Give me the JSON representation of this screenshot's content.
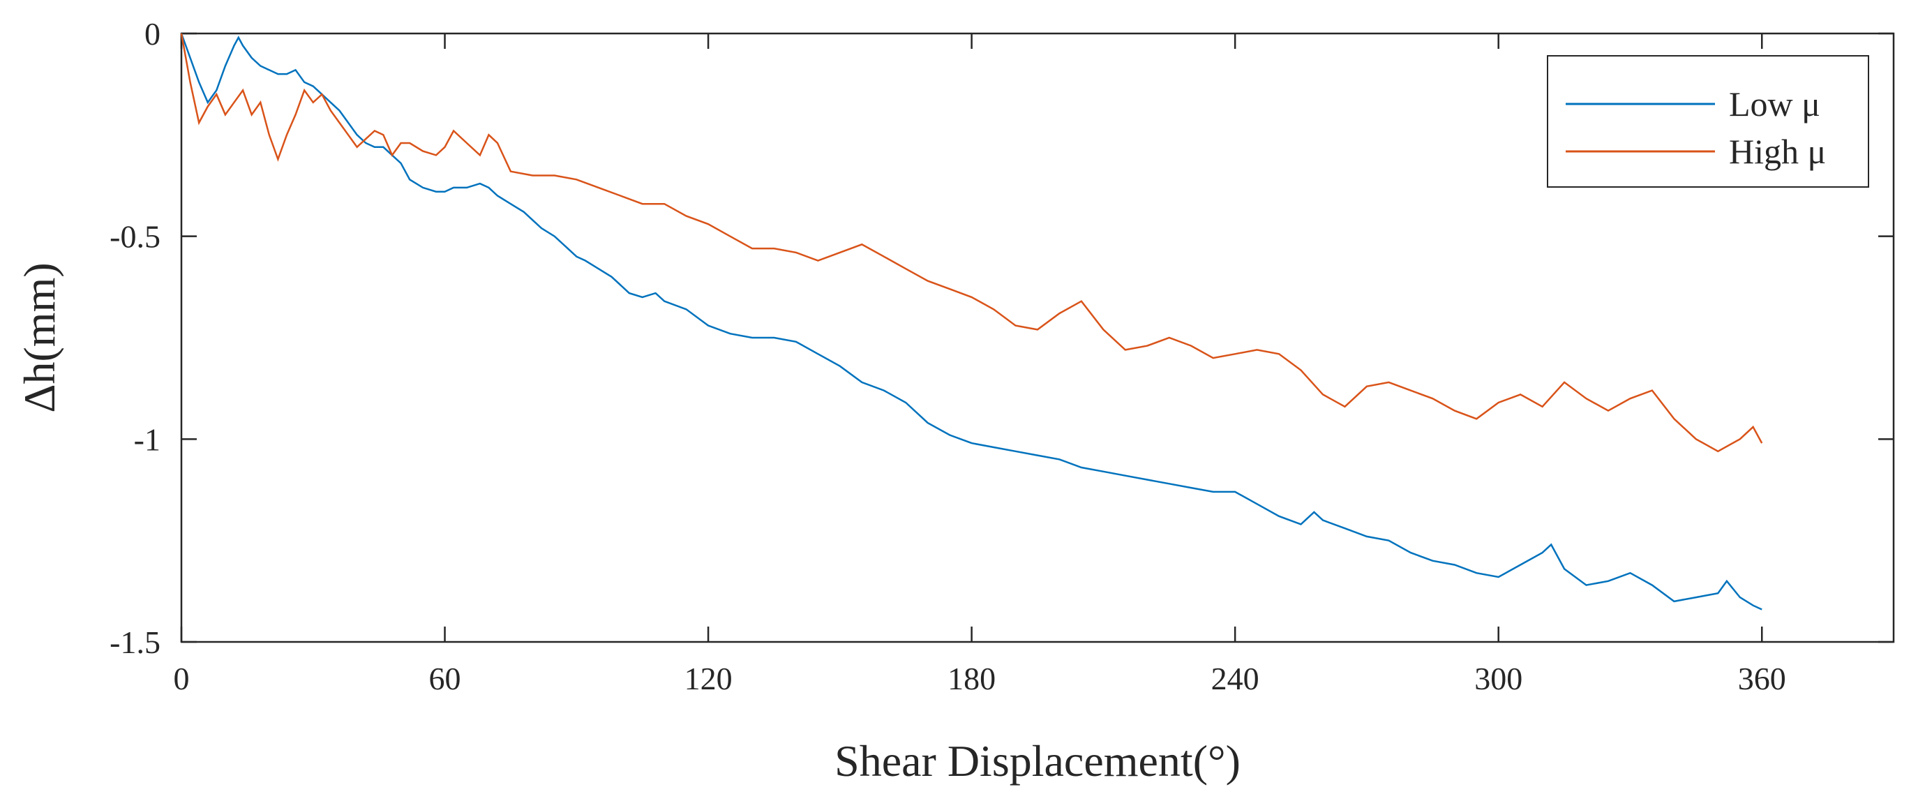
{
  "chart_data": {
    "type": "line",
    "title": "",
    "xlabel": "Shear Displacement(°)",
    "ylabel": "Δh(mm)",
    "xlim": [
      0,
      390
    ],
    "ylim": [
      -1.5,
      0
    ],
    "xticks": [
      0,
      60,
      120,
      180,
      240,
      300,
      360
    ],
    "xtick_labels": [
      "0",
      "60",
      "120",
      "180",
      "240",
      "300",
      "360"
    ],
    "yticks": [
      0,
      -0.5,
      -1,
      -1.5
    ],
    "ytick_labels": [
      "0",
      "-0.5",
      "-1",
      "-1.5"
    ],
    "grid": false,
    "legend_position": "top-right",
    "series": [
      {
        "name": "Low μ",
        "color": "#0072BD",
        "x": [
          0,
          2,
          4,
          6,
          8,
          10,
          12,
          13,
          14,
          16,
          18,
          20,
          22,
          24,
          26,
          28,
          30,
          32,
          34,
          36,
          38,
          40,
          42,
          44,
          46,
          48,
          50,
          52,
          55,
          58,
          60,
          62,
          65,
          68,
          70,
          72,
          75,
          78,
          80,
          82,
          85,
          88,
          90,
          92,
          95,
          98,
          100,
          102,
          105,
          108,
          110,
          115,
          120,
          125,
          130,
          135,
          140,
          145,
          150,
          155,
          160,
          165,
          170,
          175,
          180,
          185,
          190,
          195,
          200,
          205,
          210,
          215,
          220,
          225,
          230,
          235,
          240,
          245,
          250,
          255,
          258,
          260,
          265,
          270,
          275,
          280,
          285,
          290,
          295,
          300,
          305,
          310,
          312,
          315,
          320,
          325,
          330,
          335,
          340,
          345,
          350,
          352,
          355,
          358,
          360
        ],
        "y": [
          0,
          -0.06,
          -0.12,
          -0.17,
          -0.14,
          -0.08,
          -0.03,
          -0.01,
          -0.03,
          -0.06,
          -0.08,
          -0.09,
          -0.1,
          -0.1,
          -0.09,
          -0.12,
          -0.13,
          -0.15,
          -0.17,
          -0.19,
          -0.22,
          -0.25,
          -0.27,
          -0.28,
          -0.28,
          -0.3,
          -0.32,
          -0.36,
          -0.38,
          -0.39,
          -0.39,
          -0.38,
          -0.38,
          -0.37,
          -0.38,
          -0.4,
          -0.42,
          -0.44,
          -0.46,
          -0.48,
          -0.5,
          -0.53,
          -0.55,
          -0.56,
          -0.58,
          -0.6,
          -0.62,
          -0.64,
          -0.65,
          -0.64,
          -0.66,
          -0.68,
          -0.72,
          -0.74,
          -0.75,
          -0.75,
          -0.76,
          -0.79,
          -0.82,
          -0.86,
          -0.88,
          -0.91,
          -0.96,
          -0.99,
          -1.01,
          -1.02,
          -1.03,
          -1.04,
          -1.05,
          -1.07,
          -1.08,
          -1.09,
          -1.1,
          -1.11,
          -1.12,
          -1.13,
          -1.13,
          -1.16,
          -1.19,
          -1.21,
          -1.18,
          -1.2,
          -1.22,
          -1.24,
          -1.25,
          -1.28,
          -1.3,
          -1.31,
          -1.33,
          -1.34,
          -1.31,
          -1.28,
          -1.26,
          -1.32,
          -1.36,
          -1.35,
          -1.33,
          -1.36,
          -1.4,
          -1.39,
          -1.38,
          -1.35,
          -1.39,
          -1.41,
          -1.42
        ]
      },
      {
        "name": "High μ",
        "color": "#D95319",
        "x": [
          0,
          2,
          4,
          6,
          8,
          10,
          12,
          14,
          16,
          18,
          20,
          22,
          24,
          26,
          28,
          30,
          32,
          34,
          36,
          38,
          40,
          42,
          44,
          46,
          48,
          50,
          52,
          55,
          58,
          60,
          62,
          65,
          68,
          70,
          72,
          75,
          80,
          85,
          90,
          95,
          100,
          105,
          110,
          115,
          120,
          125,
          130,
          135,
          140,
          145,
          150,
          155,
          160,
          165,
          170,
          175,
          180,
          185,
          190,
          195,
          200,
          205,
          210,
          215,
          220,
          225,
          230,
          235,
          240,
          245,
          250,
          255,
          260,
          265,
          270,
          275,
          280,
          285,
          290,
          295,
          300,
          305,
          310,
          315,
          320,
          325,
          330,
          335,
          340,
          345,
          350,
          355,
          358,
          360
        ],
        "y": [
          0,
          -0.12,
          -0.22,
          -0.18,
          -0.15,
          -0.2,
          -0.17,
          -0.14,
          -0.2,
          -0.17,
          -0.25,
          -0.31,
          -0.25,
          -0.2,
          -0.14,
          -0.17,
          -0.15,
          -0.19,
          -0.22,
          -0.25,
          -0.28,
          -0.26,
          -0.24,
          -0.25,
          -0.3,
          -0.27,
          -0.27,
          -0.29,
          -0.3,
          -0.28,
          -0.24,
          -0.27,
          -0.3,
          -0.25,
          -0.27,
          -0.34,
          -0.35,
          -0.35,
          -0.36,
          -0.38,
          -0.4,
          -0.42,
          -0.42,
          -0.45,
          -0.47,
          -0.5,
          -0.53,
          -0.53,
          -0.54,
          -0.56,
          -0.54,
          -0.52,
          -0.55,
          -0.58,
          -0.61,
          -0.63,
          -0.65,
          -0.68,
          -0.72,
          -0.73,
          -0.69,
          -0.66,
          -0.73,
          -0.78,
          -0.77,
          -0.75,
          -0.77,
          -0.8,
          -0.79,
          -0.78,
          -0.79,
          -0.83,
          -0.89,
          -0.92,
          -0.87,
          -0.86,
          -0.88,
          -0.9,
          -0.93,
          -0.95,
          -0.91,
          -0.89,
          -0.92,
          -0.86,
          -0.9,
          -0.93,
          -0.9,
          -0.88,
          -0.95,
          -1.0,
          -1.03,
          -1.0,
          -0.97,
          -1.01
        ]
      }
    ]
  }
}
